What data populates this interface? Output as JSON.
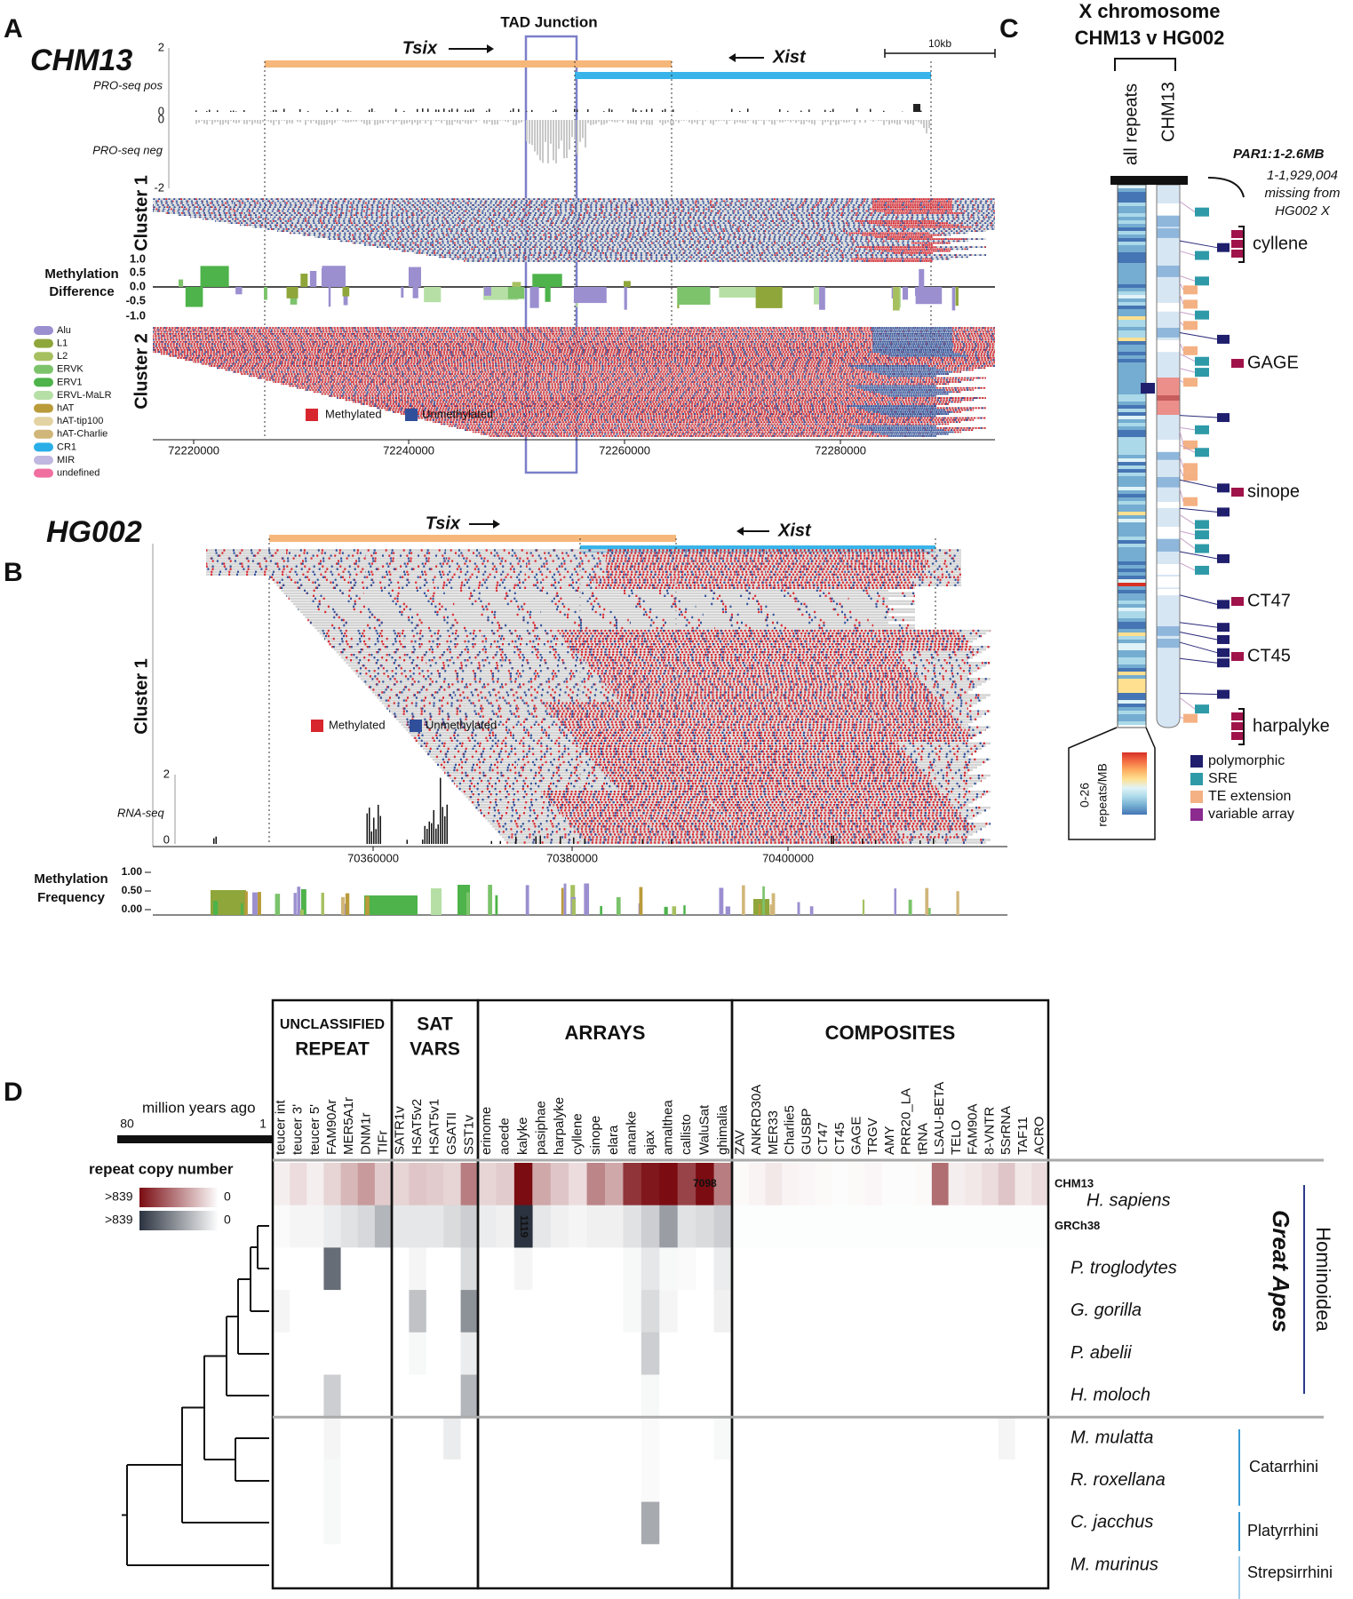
{
  "panel_a": {
    "letter": "A",
    "sample": "CHM13",
    "tad": "TAD Junction",
    "tsix": "Tsix",
    "xist": "Xist",
    "scale": "10kb",
    "pro_pos": "PRO-seq pos",
    "pro_neg": "PRO-seq neg",
    "pro_ticks": [
      "2",
      "0",
      "0",
      "-2"
    ],
    "cluster1": "Cluster 1",
    "cluster2": "Cluster 2",
    "diff_label": [
      "Methylation",
      "Difference"
    ],
    "diff_ticks": [
      "1.0",
      "0.5",
      "0.0",
      "-0.5",
      "-1.0"
    ],
    "methylated": "Methylated",
    "unmethylated": "Unmethylated",
    "x_ticks": [
      "72220000",
      "72240000",
      "72260000",
      "72280000"
    ],
    "repeats": [
      {
        "name": "Alu",
        "color": "#9b8fd0"
      },
      {
        "name": "L1",
        "color": "#8fa63a"
      },
      {
        "name": "L2",
        "color": "#a6c060"
      },
      {
        "name": "ERVK",
        "color": "#7cc36b"
      },
      {
        "name": "ERV1",
        "color": "#4db34a"
      },
      {
        "name": "ERVL-MaLR",
        "color": "#b6dfa6"
      },
      {
        "name": "hAT",
        "color": "#b99b3a"
      },
      {
        "name": "hAT-tip100",
        "color": "#e3d3a3"
      },
      {
        "name": "hAT-Charlie",
        "color": "#d1b679"
      },
      {
        "name": "CR1",
        "color": "#29aee8"
      },
      {
        "name": "MIR",
        "color": "#c0b8e0"
      },
      {
        "name": "undefined",
        "color": "#f06fa0"
      }
    ]
  },
  "panel_b": {
    "letter": "B",
    "sample": "HG002",
    "tsix": "Tsix",
    "xist": "Xist",
    "cluster1": "Cluster 1",
    "methylated": "Methylated",
    "unmethylated": "Unmethylated",
    "rna": "RNA-seq",
    "rna_ticks": [
      "2",
      "0"
    ],
    "x_ticks": [
      "70360000",
      "70380000",
      "70400000"
    ],
    "freq_label": [
      "Methylation",
      "Frequency"
    ],
    "freq_ticks": [
      "1.00",
      "0.50",
      "0.00"
    ]
  },
  "panel_c": {
    "letter": "C",
    "title": [
      "X chromosome",
      "CHM13 v HG002"
    ],
    "col1": "all repeats",
    "col2": "CHM13",
    "par1": "PAR1:",
    "par1_range": "1-2.6MB",
    "par1_note": [
      "1-1,929,004",
      "missing from",
      "HG002 X"
    ],
    "loci": [
      "cyllene",
      "GAGE",
      "sinope",
      "CT47",
      "CT45",
      "harpalyke"
    ],
    "scale_label": [
      "0-26",
      "repeats/MB"
    ],
    "legend": [
      {
        "name": "polymorphic",
        "color": "#1f1f6e"
      },
      {
        "name": "SRE",
        "color": "#2e9aa8"
      },
      {
        "name": "TE extension",
        "color": "#f4b183"
      },
      {
        "name": "variable array",
        "color": "#8b2a8f"
      }
    ]
  },
  "panel_d": {
    "letter": "D",
    "mya": "million years ago",
    "mya_ticks": [
      "80",
      "1"
    ],
    "copy_label": "repeat copy number",
    "scales": [
      {
        "max": {
          "value": 839,
          "label": ">839"
        },
        "min": 0,
        "color": "#7a0c12"
      },
      {
        "max": {
          "value": 839,
          "label": ">839"
        },
        "min": 0,
        "color": "#2b3340"
      }
    ],
    "groups": [
      {
        "name": [
          "UNCLASSIFIED",
          "REPEAT"
        ],
        "columns": [
          "teucer int",
          "teucer 3'",
          "teucer 5'",
          "FAM90Ar",
          "MER5A1r",
          "DNM1r",
          "TIFr"
        ]
      },
      {
        "name": [
          "SAT",
          "VARS"
        ],
        "columns": [
          "SATR1v",
          "HSAT5v2",
          "HSAT5v1",
          "GSATII",
          "SST1v"
        ]
      },
      {
        "name": [
          "ARRAYS"
        ],
        "columns": [
          "erinome",
          "aoede",
          "kalyke",
          "pasiphae",
          "harpalyke",
          "cyllene",
          "sinope",
          "elara",
          "ananke",
          "ajax",
          "amalthea",
          "callisto",
          "WaluSat",
          "ghimalia"
        ]
      },
      {
        "name": [
          "COMPOSITES"
        ],
        "columns": [
          "ZAV",
          "ANKRD30A",
          "MER33",
          "Charlie5",
          "GUSBP",
          "CT47",
          "CT45",
          "GAGE",
          "TRGV",
          "AMY",
          "PRR20_LA",
          "tRNA",
          "LSAU-BETA",
          "TELO",
          "FAM90A",
          "8-VNTR",
          "5SrRNA",
          "TAF11",
          "ACRO"
        ]
      }
    ],
    "species_top": "H. sapiens",
    "rows": [
      {
        "label": "CHM13",
        "scale": 0,
        "values": [
          60,
          120,
          60,
          150,
          250,
          350,
          180,
          150,
          200,
          180,
          150,
          450,
          150,
          180,
          900,
          300,
          200,
          120,
          420,
          300,
          700,
          800,
          1000,
          650,
          7098,
          450,
          20,
          40,
          80,
          40,
          30,
          20,
          10,
          20,
          30,
          10,
          10,
          20,
          500,
          60,
          80,
          120,
          200,
          80,
          120
        ]
      },
      {
        "label": "GRCh38",
        "scale": 1,
        "values": [
          20,
          40,
          40,
          80,
          120,
          160,
          300,
          100,
          100,
          100,
          150,
          200,
          80,
          60,
          1119,
          100,
          60,
          40,
          60,
          60,
          120,
          200,
          400,
          120,
          150,
          200,
          10,
          10,
          10,
          10,
          10,
          10,
          10,
          10,
          10,
          10,
          10,
          10,
          10,
          10,
          10,
          10,
          10,
          10,
          10
        ]
      },
      {
        "label": "P. troglodytes",
        "scale": 1,
        "values": [
          0,
          0,
          0,
          600,
          0,
          0,
          0,
          0,
          40,
          0,
          0,
          150,
          0,
          0,
          40,
          0,
          0,
          0,
          0,
          0,
          30,
          100,
          30,
          20,
          0,
          80,
          0,
          0,
          0,
          0,
          0,
          0,
          0,
          0,
          0,
          0,
          0,
          0,
          0,
          0,
          0,
          0,
          0,
          0,
          0
        ]
      },
      {
        "label": "G. gorilla",
        "scale": 1,
        "values": [
          40,
          0,
          0,
          0,
          0,
          0,
          0,
          0,
          250,
          0,
          0,
          450,
          0,
          0,
          0,
          0,
          0,
          0,
          0,
          0,
          30,
          150,
          40,
          0,
          0,
          60,
          0,
          0,
          0,
          0,
          0,
          0,
          0,
          0,
          0,
          0,
          0,
          0,
          0,
          0,
          0,
          0,
          0,
          0,
          0
        ]
      },
      {
        "label": "P. abelii",
        "scale": 1,
        "values": [
          0,
          0,
          0,
          0,
          0,
          0,
          0,
          0,
          30,
          0,
          0,
          80,
          0,
          0,
          0,
          0,
          0,
          0,
          0,
          0,
          0,
          200,
          0,
          0,
          0,
          0,
          0,
          0,
          0,
          0,
          0,
          0,
          0,
          0,
          0,
          0,
          0,
          0,
          0,
          0,
          0,
          0,
          0,
          0,
          0
        ]
      },
      {
        "label": "H. moloch",
        "scale": 1,
        "values": [
          0,
          0,
          0,
          200,
          0,
          0,
          0,
          0,
          0,
          0,
          0,
          300,
          0,
          0,
          0,
          0,
          0,
          0,
          0,
          0,
          0,
          30,
          0,
          0,
          0,
          0,
          0,
          0,
          0,
          0,
          0,
          0,
          0,
          0,
          0,
          0,
          0,
          0,
          0,
          0,
          0,
          0,
          0,
          0,
          0
        ]
      },
      {
        "label": "M. mulatta",
        "scale": 1,
        "values": [
          0,
          0,
          0,
          40,
          0,
          0,
          0,
          0,
          0,
          0,
          80,
          0,
          0,
          0,
          0,
          0,
          0,
          0,
          0,
          0,
          0,
          20,
          0,
          0,
          0,
          30,
          0,
          0,
          0,
          0,
          0,
          0,
          0,
          0,
          0,
          0,
          0,
          0,
          0,
          0,
          0,
          0,
          40,
          0,
          0
        ]
      },
      {
        "label": "R. roxellana",
        "scale": 1,
        "values": [
          0,
          0,
          0,
          30,
          0,
          0,
          0,
          0,
          0,
          0,
          0,
          0,
          0,
          0,
          0,
          0,
          0,
          0,
          0,
          0,
          0,
          20,
          0,
          0,
          0,
          0,
          0,
          0,
          0,
          0,
          0,
          0,
          0,
          0,
          0,
          0,
          0,
          0,
          0,
          0,
          0,
          0,
          0,
          0,
          0
        ]
      },
      {
        "label": "C. jacchus",
        "scale": 1,
        "values": [
          0,
          0,
          0,
          30,
          0,
          0,
          0,
          0,
          0,
          0,
          0,
          0,
          0,
          0,
          0,
          0,
          0,
          0,
          0,
          0,
          0,
          350,
          0,
          0,
          0,
          0,
          0,
          0,
          0,
          0,
          0,
          0,
          0,
          0,
          0,
          0,
          0,
          0,
          0,
          0,
          0,
          0,
          0,
          0,
          0
        ]
      },
      {
        "label": "M. murinus",
        "scale": 1,
        "values": [
          0,
          0,
          0,
          0,
          0,
          0,
          0,
          0,
          0,
          0,
          0,
          0,
          0,
          0,
          0,
          0,
          0,
          0,
          0,
          0,
          0,
          0,
          0,
          0,
          0,
          0,
          0,
          0,
          0,
          0,
          0,
          0,
          0,
          0,
          0,
          0,
          0,
          0,
          0,
          0,
          0,
          0,
          0,
          0,
          0
        ]
      }
    ],
    "clades": [
      "Great Apes",
      "Hominoidea",
      "Catarrhini",
      "Platyrrhini",
      "Strepsirrhini"
    ]
  }
}
